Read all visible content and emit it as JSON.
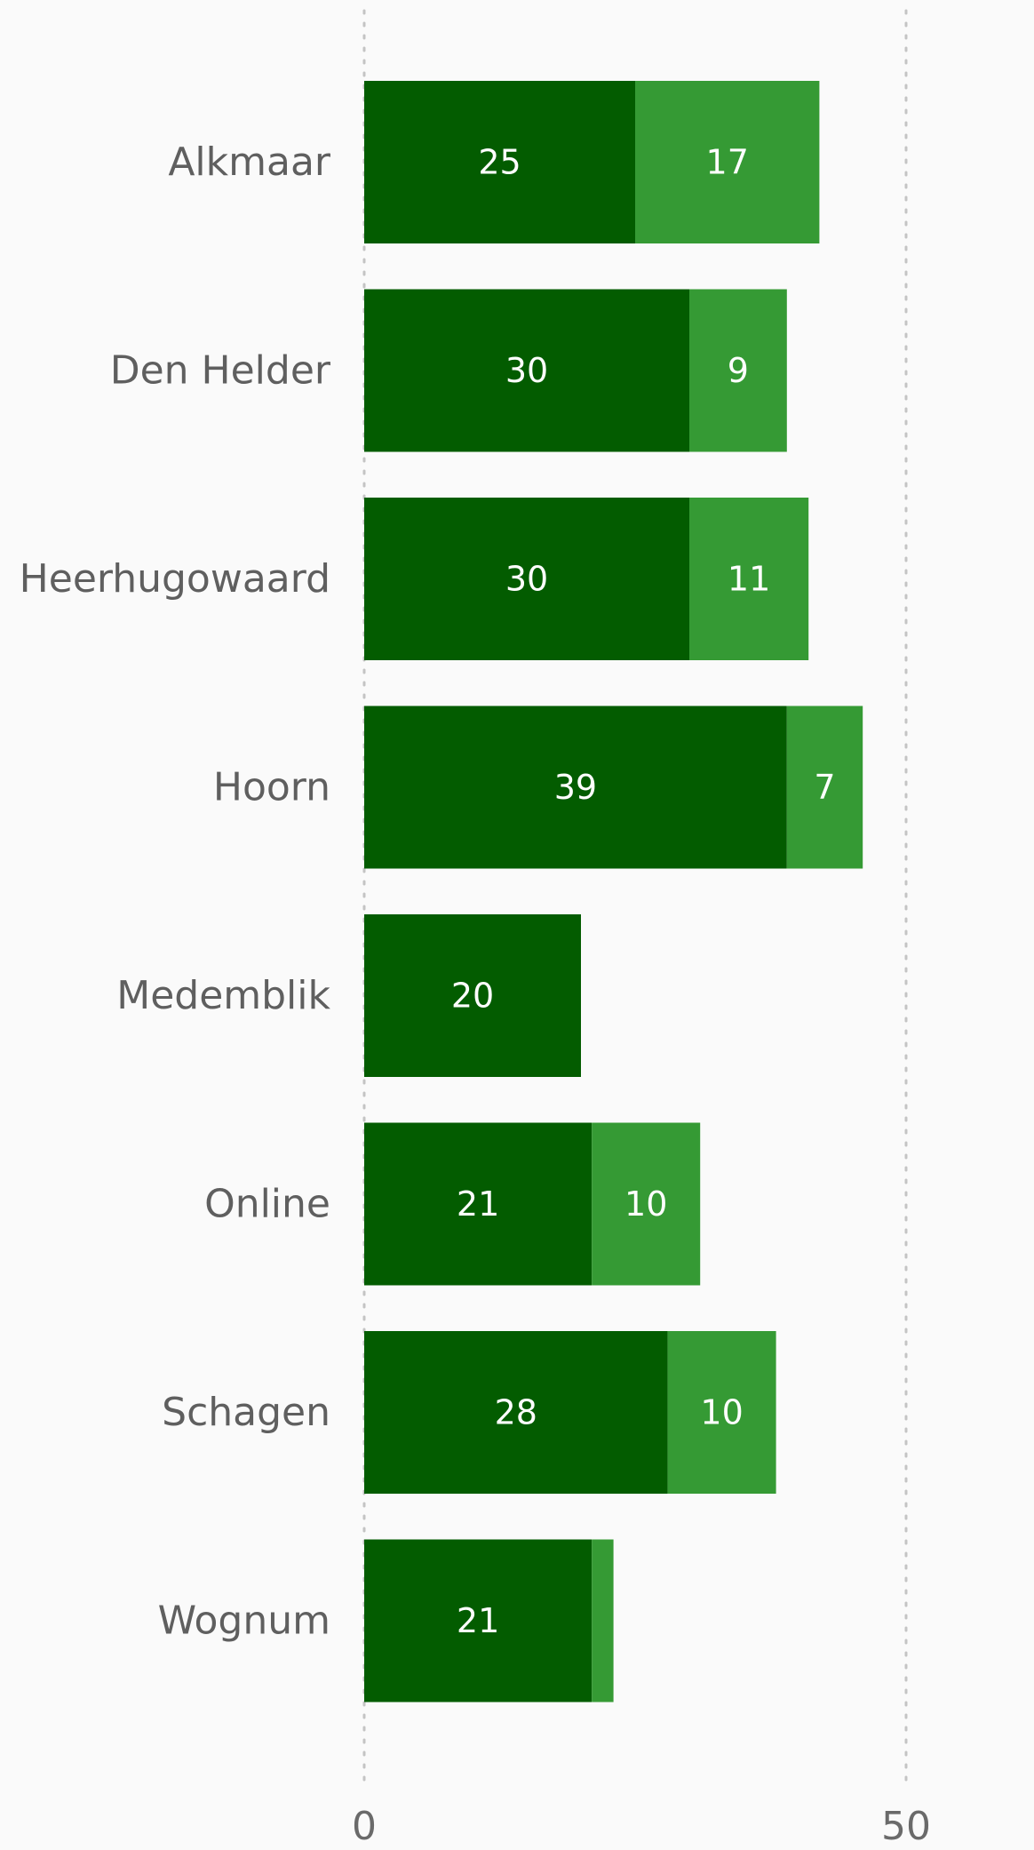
{
  "chart_data": {
    "type": "bar",
    "orientation": "horizontal",
    "stacked": true,
    "categories": [
      "Alkmaar",
      "Den Helder",
      "Heerhugowaard",
      "Hoorn",
      "Medemblik",
      "Online",
      "Schagen",
      "Wognum"
    ],
    "series": [
      {
        "values": [
          25,
          30,
          30,
          39,
          20,
          21,
          28,
          21
        ],
        "color": "#035c00",
        "value_labels": [
          "25",
          "30",
          "30",
          "39",
          "20",
          "21",
          "28",
          "21"
        ]
      },
      {
        "values": [
          17,
          9,
          11,
          7,
          0,
          10,
          10,
          2
        ],
        "color": "#359a34",
        "value_labels": [
          "17",
          "9",
          "11",
          "7",
          "",
          "10",
          "10",
          ""
        ]
      }
    ],
    "xlim": [
      0,
      50
    ],
    "x_ticks": [
      "0",
      "50"
    ],
    "grid": true,
    "legend": "none"
  }
}
